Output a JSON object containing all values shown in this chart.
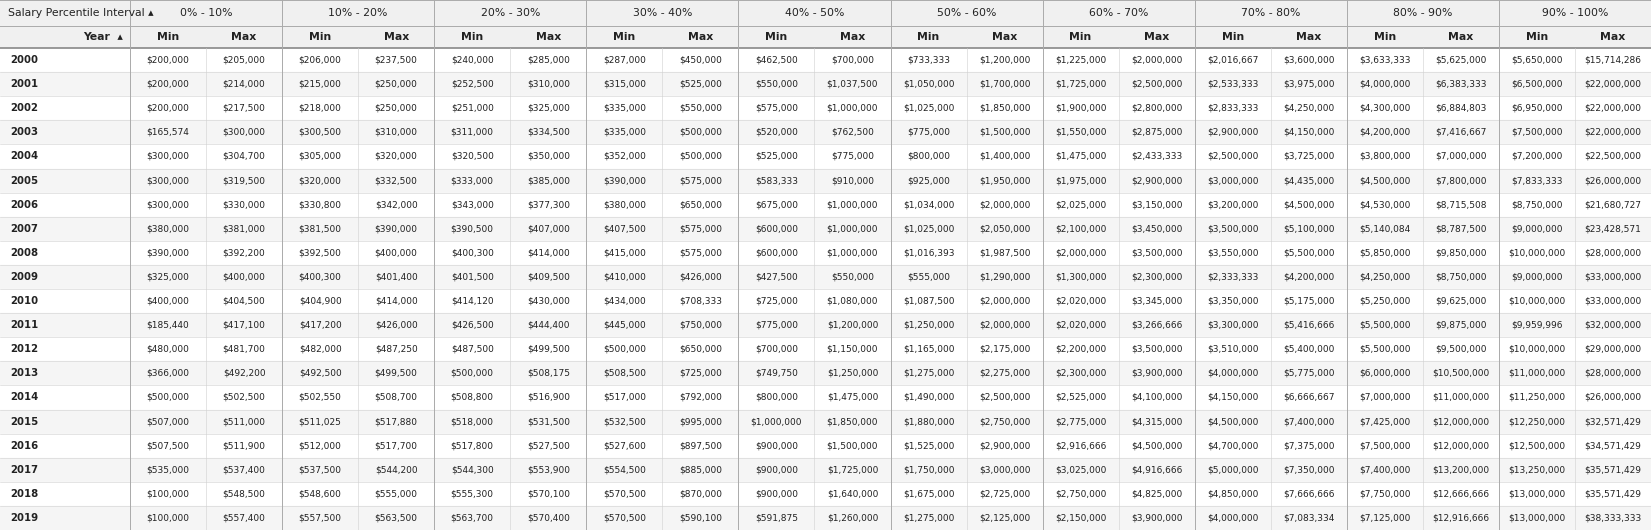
{
  "col_groups": [
    "0% - 10%",
    "10% - 20%",
    "20% - 30%",
    "30% - 40%",
    "40% - 50%",
    "50% - 60%",
    "60% - 70%",
    "70% - 80%",
    "80% - 90%",
    "90% - 100%"
  ],
  "years": [
    2000,
    2001,
    2002,
    2003,
    2004,
    2005,
    2006,
    2007,
    2008,
    2009,
    2010,
    2011,
    2012,
    2013,
    2014,
    2015,
    2016,
    2017,
    2018,
    2019
  ],
  "data": [
    [
      "$200,000",
      "$205,000",
      "$206,000",
      "$237,500",
      "$240,000",
      "$285,000",
      "$287,000",
      "$450,000",
      "$462,500",
      "$700,000",
      "$733,333",
      "$1,200,000",
      "$1,225,000",
      "$2,000,000",
      "$2,016,667",
      "$3,600,000",
      "$3,633,333",
      "$5,625,000",
      "$5,650,000",
      "$15,714,286"
    ],
    [
      "$200,000",
      "$214,000",
      "$215,000",
      "$250,000",
      "$252,500",
      "$310,000",
      "$315,000",
      "$525,000",
      "$550,000",
      "$1,037,500",
      "$1,050,000",
      "$1,700,000",
      "$1,725,000",
      "$2,500,000",
      "$2,533,333",
      "$3,975,000",
      "$4,000,000",
      "$6,383,333",
      "$6,500,000",
      "$22,000,000"
    ],
    [
      "$200,000",
      "$217,500",
      "$218,000",
      "$250,000",
      "$251,000",
      "$325,000",
      "$335,000",
      "$550,000",
      "$575,000",
      "$1,000,000",
      "$1,025,000",
      "$1,850,000",
      "$1,900,000",
      "$2,800,000",
      "$2,833,333",
      "$4,250,000",
      "$4,300,000",
      "$6,884,803",
      "$6,950,000",
      "$22,000,000"
    ],
    [
      "$165,574",
      "$300,000",
      "$300,500",
      "$310,000",
      "$311,000",
      "$334,500",
      "$335,000",
      "$500,000",
      "$520,000",
      "$762,500",
      "$775,000",
      "$1,500,000",
      "$1,550,000",
      "$2,875,000",
      "$2,900,000",
      "$4,150,000",
      "$4,200,000",
      "$7,416,667",
      "$7,500,000",
      "$22,000,000"
    ],
    [
      "$300,000",
      "$304,700",
      "$305,000",
      "$320,000",
      "$320,500",
      "$350,000",
      "$352,000",
      "$500,000",
      "$525,000",
      "$775,000",
      "$800,000",
      "$1,400,000",
      "$1,475,000",
      "$2,433,333",
      "$2,500,000",
      "$3,725,000",
      "$3,800,000",
      "$7,000,000",
      "$7,200,000",
      "$22,500,000"
    ],
    [
      "$300,000",
      "$319,500",
      "$320,000",
      "$332,500",
      "$333,000",
      "$385,000",
      "$390,000",
      "$575,000",
      "$583,333",
      "$910,000",
      "$925,000",
      "$1,950,000",
      "$1,975,000",
      "$2,900,000",
      "$3,000,000",
      "$4,435,000",
      "$4,500,000",
      "$7,800,000",
      "$7,833,333",
      "$26,000,000"
    ],
    [
      "$300,000",
      "$330,000",
      "$330,800",
      "$342,000",
      "$343,000",
      "$377,300",
      "$380,000",
      "$650,000",
      "$675,000",
      "$1,000,000",
      "$1,034,000",
      "$2,000,000",
      "$2,025,000",
      "$3,150,000",
      "$3,200,000",
      "$4,500,000",
      "$4,530,000",
      "$8,715,508",
      "$8,750,000",
      "$21,680,727"
    ],
    [
      "$380,000",
      "$381,000",
      "$381,500",
      "$390,000",
      "$390,500",
      "$407,000",
      "$407,500",
      "$575,000",
      "$600,000",
      "$1,000,000",
      "$1,025,000",
      "$2,050,000",
      "$2,100,000",
      "$3,450,000",
      "$3,500,000",
      "$5,100,000",
      "$5,140,084",
      "$8,787,500",
      "$9,000,000",
      "$23,428,571"
    ],
    [
      "$390,000",
      "$392,200",
      "$392,500",
      "$400,000",
      "$400,300",
      "$414,000",
      "$415,000",
      "$575,000",
      "$600,000",
      "$1,000,000",
      "$1,016,393",
      "$1,987,500",
      "$2,000,000",
      "$3,500,000",
      "$3,550,000",
      "$5,500,000",
      "$5,850,000",
      "$9,850,000",
      "$10,000,000",
      "$28,000,000"
    ],
    [
      "$325,000",
      "$400,000",
      "$400,300",
      "$401,400",
      "$401,500",
      "$409,500",
      "$410,000",
      "$426,000",
      "$427,500",
      "$550,000",
      "$555,000",
      "$1,290,000",
      "$1,300,000",
      "$2,300,000",
      "$2,333,333",
      "$4,200,000",
      "$4,250,000",
      "$8,750,000",
      "$9,000,000",
      "$33,000,000"
    ],
    [
      "$400,000",
      "$404,500",
      "$404,900",
      "$414,000",
      "$414,120",
      "$430,000",
      "$434,000",
      "$708,333",
      "$725,000",
      "$1,080,000",
      "$1,087,500",
      "$2,000,000",
      "$2,020,000",
      "$3,345,000",
      "$3,350,000",
      "$5,175,000",
      "$5,250,000",
      "$9,625,000",
      "$10,000,000",
      "$33,000,000"
    ],
    [
      "$185,440",
      "$417,100",
      "$417,200",
      "$426,000",
      "$426,500",
      "$444,400",
      "$445,000",
      "$750,000",
      "$775,000",
      "$1,200,000",
      "$1,250,000",
      "$2,000,000",
      "$2,020,000",
      "$3,266,666",
      "$3,300,000",
      "$5,416,666",
      "$5,500,000",
      "$9,875,000",
      "$9,959,996",
      "$32,000,000"
    ],
    [
      "$480,000",
      "$481,700",
      "$482,000",
      "$487,250",
      "$487,500",
      "$499,500",
      "$500,000",
      "$650,000",
      "$700,000",
      "$1,150,000",
      "$1,165,000",
      "$2,175,000",
      "$2,200,000",
      "$3,500,000",
      "$3,510,000",
      "$5,400,000",
      "$5,500,000",
      "$9,500,000",
      "$10,000,000",
      "$29,000,000"
    ],
    [
      "$366,000",
      "$492,200",
      "$492,500",
      "$499,500",
      "$500,000",
      "$508,175",
      "$508,500",
      "$725,000",
      "$749,750",
      "$1,250,000",
      "$1,275,000",
      "$2,275,000",
      "$2,300,000",
      "$3,900,000",
      "$4,000,000",
      "$5,775,000",
      "$6,000,000",
      "$10,500,000",
      "$11,000,000",
      "$28,000,000"
    ],
    [
      "$500,000",
      "$502,500",
      "$502,550",
      "$508,700",
      "$508,800",
      "$516,900",
      "$517,000",
      "$792,000",
      "$800,000",
      "$1,475,000",
      "$1,490,000",
      "$2,500,000",
      "$2,525,000",
      "$4,100,000",
      "$4,150,000",
      "$6,666,667",
      "$7,000,000",
      "$11,000,000",
      "$11,250,000",
      "$26,000,000"
    ],
    [
      "$507,000",
      "$511,000",
      "$511,025",
      "$517,880",
      "$518,000",
      "$531,500",
      "$532,500",
      "$995,000",
      "$1,000,000",
      "$1,850,000",
      "$1,880,000",
      "$2,750,000",
      "$2,775,000",
      "$4,315,000",
      "$4,500,000",
      "$7,400,000",
      "$7,425,000",
      "$12,000,000",
      "$12,250,000",
      "$32,571,429"
    ],
    [
      "$507,500",
      "$511,900",
      "$512,000",
      "$517,700",
      "$517,800",
      "$527,500",
      "$527,600",
      "$897,500",
      "$900,000",
      "$1,500,000",
      "$1,525,000",
      "$2,900,000",
      "$2,916,666",
      "$4,500,000",
      "$4,700,000",
      "$7,375,000",
      "$7,500,000",
      "$12,000,000",
      "$12,500,000",
      "$34,571,429"
    ],
    [
      "$535,000",
      "$537,400",
      "$537,500",
      "$544,200",
      "$544,300",
      "$553,900",
      "$554,500",
      "$885,000",
      "$900,000",
      "$1,725,000",
      "$1,750,000",
      "$3,000,000",
      "$3,025,000",
      "$4,916,666",
      "$5,000,000",
      "$7,350,000",
      "$7,400,000",
      "$13,200,000",
      "$13,250,000",
      "$35,571,429"
    ],
    [
      "$100,000",
      "$548,500",
      "$548,600",
      "$555,000",
      "$555,300",
      "$570,100",
      "$570,500",
      "$870,000",
      "$900,000",
      "$1,640,000",
      "$1,675,000",
      "$2,725,000",
      "$2,750,000",
      "$4,825,000",
      "$4,850,000",
      "$7,666,666",
      "$7,750,000",
      "$12,666,666",
      "$13,000,000",
      "$35,571,429"
    ],
    [
      "$100,000",
      "$557,400",
      "$557,500",
      "$563,500",
      "$563,700",
      "$570,400",
      "$570,500",
      "$590,100",
      "$591,875",
      "$1,260,000",
      "$1,275,000",
      "$2,125,000",
      "$2,150,000",
      "$3,900,000",
      "$4,000,000",
      "$7,083,334",
      "$7,125,000",
      "$12,916,666",
      "$13,000,000",
      "$38,333,333"
    ]
  ],
  "header1_label": "Salary Percentile Interval ▴",
  "header2_year": "Year",
  "header2_sort": "▴",
  "col_groups_display": [
    "0% - 10%",
    "10% - 20%",
    "20% - 30%",
    "30% - 40%",
    "40% - 50%",
    "50% - 60%",
    "60% - 70%",
    "70% - 80%",
    "80% - 90%",
    "90% - 100%"
  ],
  "bg_header": "#f0f0f0",
  "bg_white": "#ffffff",
  "bg_alt": "#f5f5f5",
  "text_dark": "#222222",
  "border_light": "#d0d0d0",
  "border_medium": "#aaaaaa",
  "border_dark": "#888888",
  "figsize": [
    16.51,
    5.3
  ],
  "dpi": 100
}
